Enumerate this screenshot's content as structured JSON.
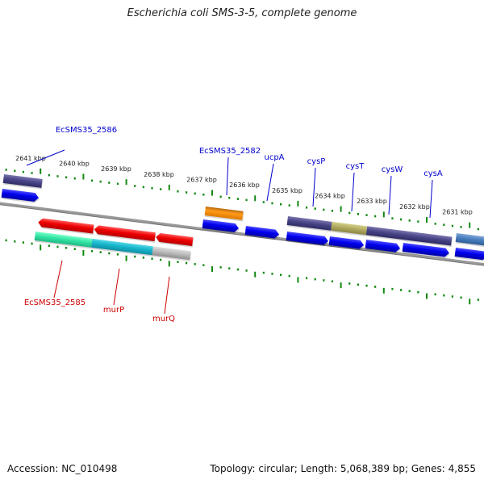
{
  "title": "Escherichia coli SMS-3-5, complete genome",
  "footer": {
    "accession": "Accession: NC_010498",
    "summary": "Topology: circular; Length: 5,068,389 bp; Genes: 4,855"
  },
  "colors": {
    "top_label": "#0000cc",
    "bottom_label": "#cc0000",
    "tick": "#118811",
    "backbone": "#808080"
  },
  "ticks": [
    "2641 kbp",
    "2640 kbp",
    "2639 kbp",
    "2638 kbp",
    "2637 kbp",
    "2636 kbp",
    "2635 kbp",
    "2634 kbp",
    "2633 kbp",
    "2632 kbp",
    "2631 kbp"
  ],
  "top_labels": [
    "EcSMS35_2586",
    "EcSMS35_2582",
    "ucpA",
    "cysP",
    "cysT",
    "cysW",
    "cysA"
  ],
  "bottom_labels": [
    "EcSMS35_2585",
    "murP",
    "murQ"
  ]
}
